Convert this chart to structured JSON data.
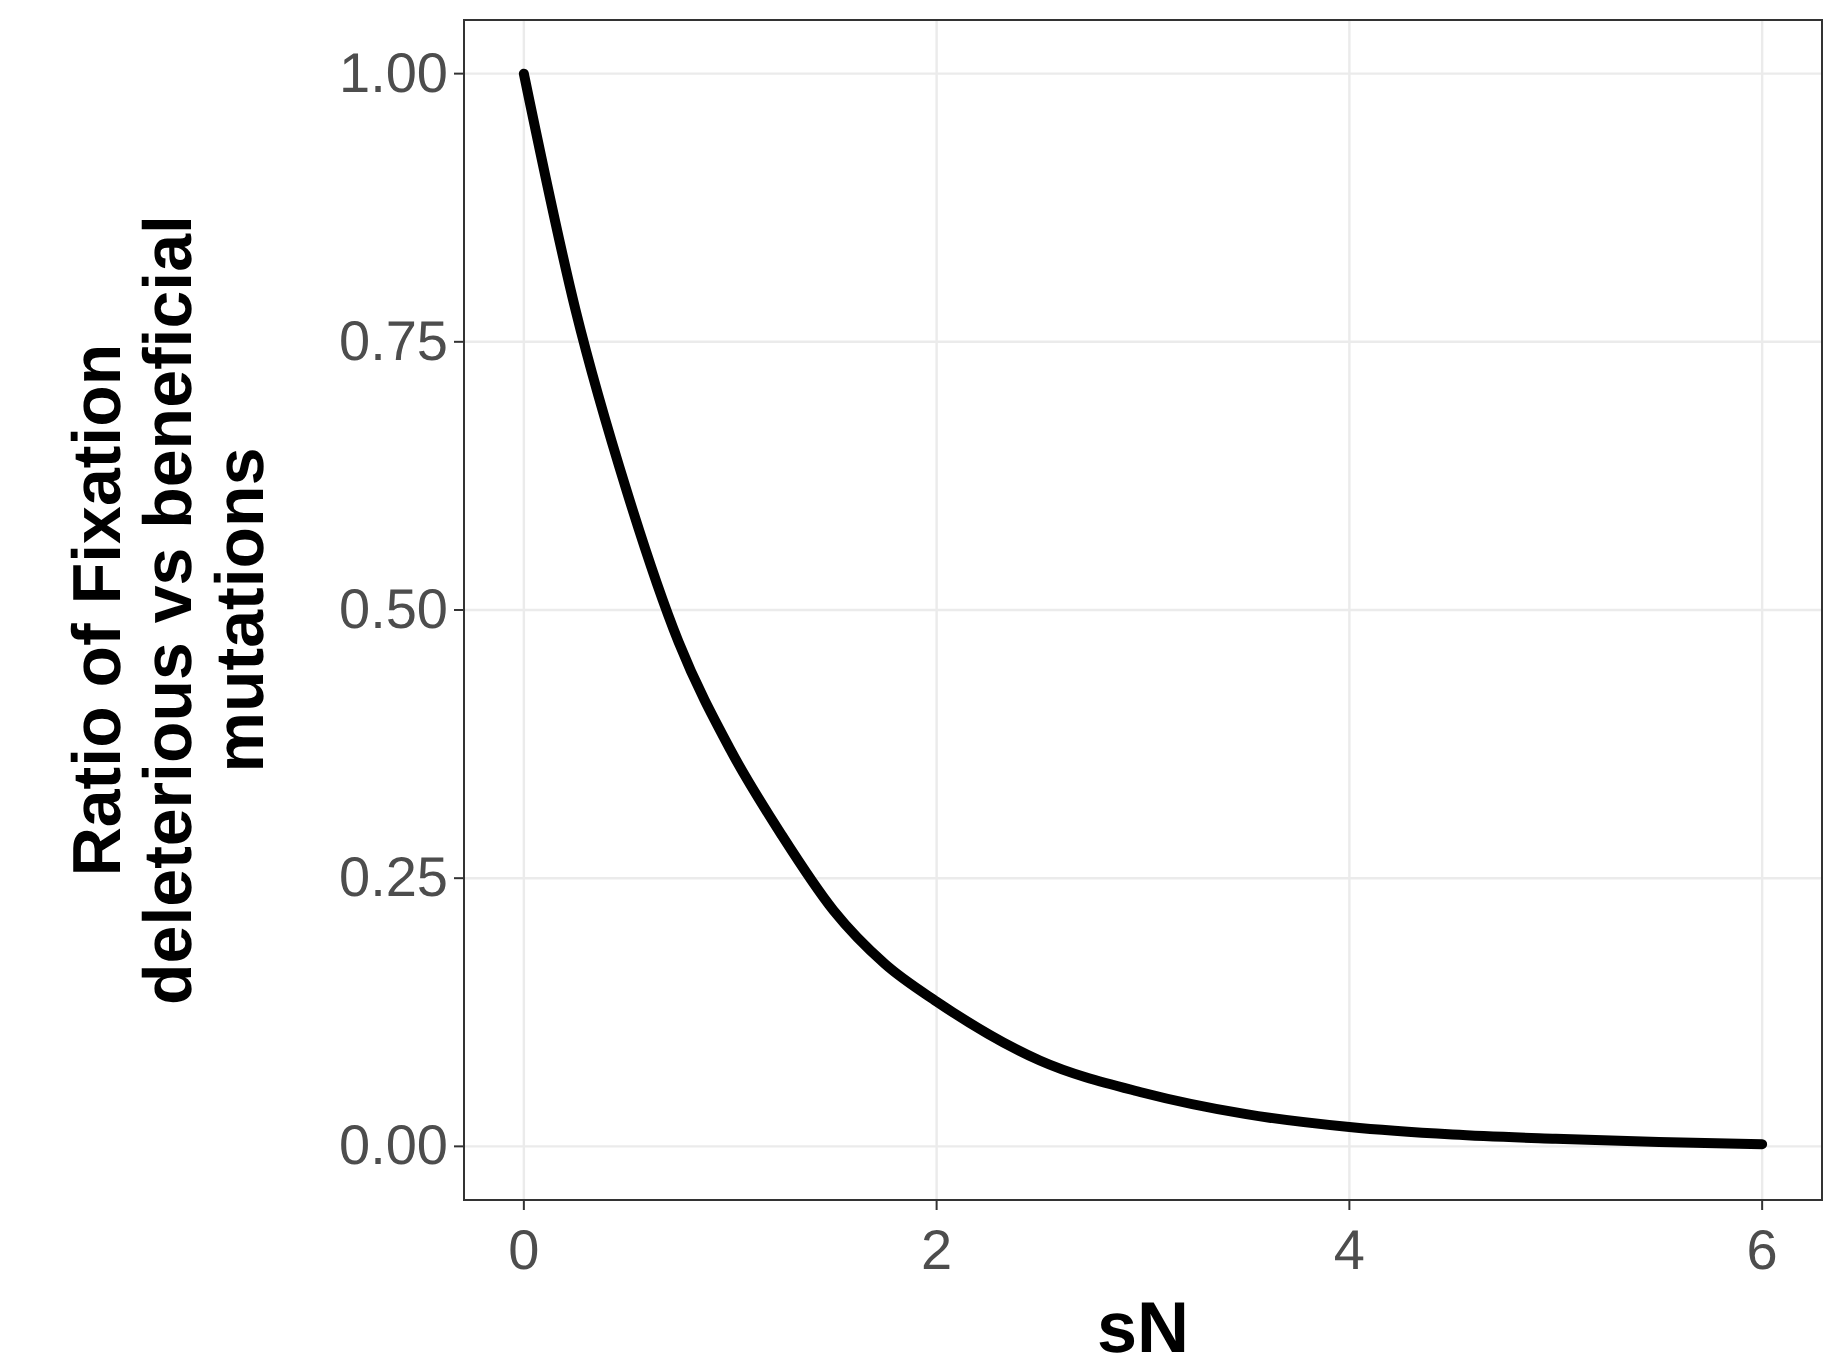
{
  "chart_data": {
    "type": "line",
    "xlabel": "sN",
    "ylabel": "Ratio of Fixation\ndeleterious vs beneficial\nmutations",
    "x": [
      0,
      0.25,
      0.5,
      0.75,
      1,
      1.25,
      1.5,
      1.75,
      2,
      2.5,
      3,
      3.5,
      4,
      4.5,
      5,
      5.5,
      6
    ],
    "series": [
      {
        "color": "#000000",
        "values": [
          1.0,
          0.78,
          0.61,
          0.47,
          0.37,
          0.29,
          0.22,
          0.17,
          0.135,
          0.08,
          0.05,
          0.03,
          0.018,
          0.011,
          0.007,
          0.004,
          0.002
        ]
      }
    ],
    "xlim": [
      -0.29,
      6.29
    ],
    "ylim": [
      -0.05,
      1.05
    ],
    "xticks": [
      0,
      2,
      4,
      6
    ],
    "yticks": [
      {
        "value": 0,
        "label": "0.00"
      },
      {
        "value": 0.25,
        "label": "0.25"
      },
      {
        "value": 0.5,
        "label": "0.50"
      },
      {
        "value": 0.75,
        "label": "0.75"
      },
      {
        "value": 1,
        "label": "1.00"
      }
    ],
    "grid": true,
    "marker": "none",
    "line_style": "solid"
  }
}
